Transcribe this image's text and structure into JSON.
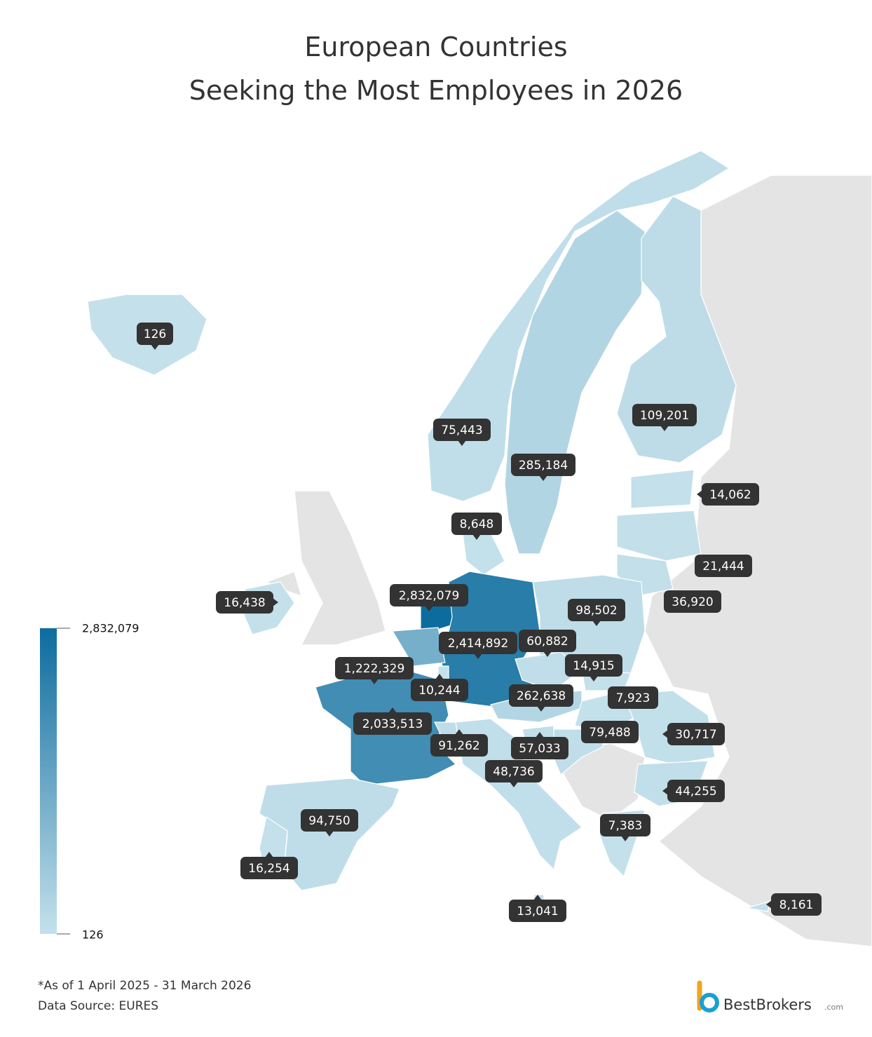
{
  "title": [
    "European Countries",
    "Seeking the Most Employees in 2026"
  ],
  "labels": [
    126,
    {
      "value": 75443,
      "label": "75,443"
    },
    {
      "value": 285184,
      "label": "285,184"
    },
    {
      "value": 109201,
      "label": "109,201"
    },
    {
      "value": 14062,
      "label": "14,062"
    },
    {
      "value": 8648,
      "label": "8,648"
    },
    {
      "value": 21444,
      "label": "21,444"
    },
    {
      "value": 36920,
      "label": "36,920"
    },
    {
      "value": 16438,
      "label": "16,438"
    },
    {
      "value": 2832079,
      "label": "2,832,079"
    },
    {
      "value": 98502,
      "label": "98,502"
    },
    {
      "value": 2414892,
      "label": "2,414,892"
    },
    {
      "value": 60882,
      "label": "60,882"
    },
    {
      "value": 1222329,
      "label": "1,222,329"
    },
    {
      "value": 14915,
      "label": "14,915"
    },
    {
      "value": 10244,
      "label": "10,244"
    },
    {
      "value": 262638,
      "label": "262,638"
    },
    {
      "value": 7923,
      "label": "7,923"
    },
    {
      "value": 2033513,
      "label": "2,033,513"
    },
    {
      "value": 79488,
      "label": "79,488"
    },
    {
      "value": 30717,
      "label": "30,717"
    },
    {
      "value": 91262,
      "label": "91,262"
    },
    {
      "value": 57033,
      "label": "57,033"
    },
    {
      "value": 48736,
      "label": "48,736"
    },
    {
      "value": 44255,
      "label": "44,255"
    },
    {
      "value": 7383,
      "label": "7,383"
    },
    {
      "value": 94750,
      "label": "94,750"
    },
    {
      "value": 16254,
      "label": "16,254"
    },
    {
      "value": 13041,
      "label": "13,041"
    },
    {
      "value": 8161,
      "label": "8,161"
    }
  ],
  "legend": {
    "max": {
      "value": 2832079,
      "label": "2,832,079"
    },
    "min": 126
  },
  "color_scale": [
    "#c4e1eb",
    "#0d6c9e"
  ],
  "notes": [
    "*As of 1 April 2025 - 31 March 2026",
    "Data Source: EURES"
  ],
  "brand": {
    "name": "BestBrokers",
    "suffix": ".com"
  }
}
